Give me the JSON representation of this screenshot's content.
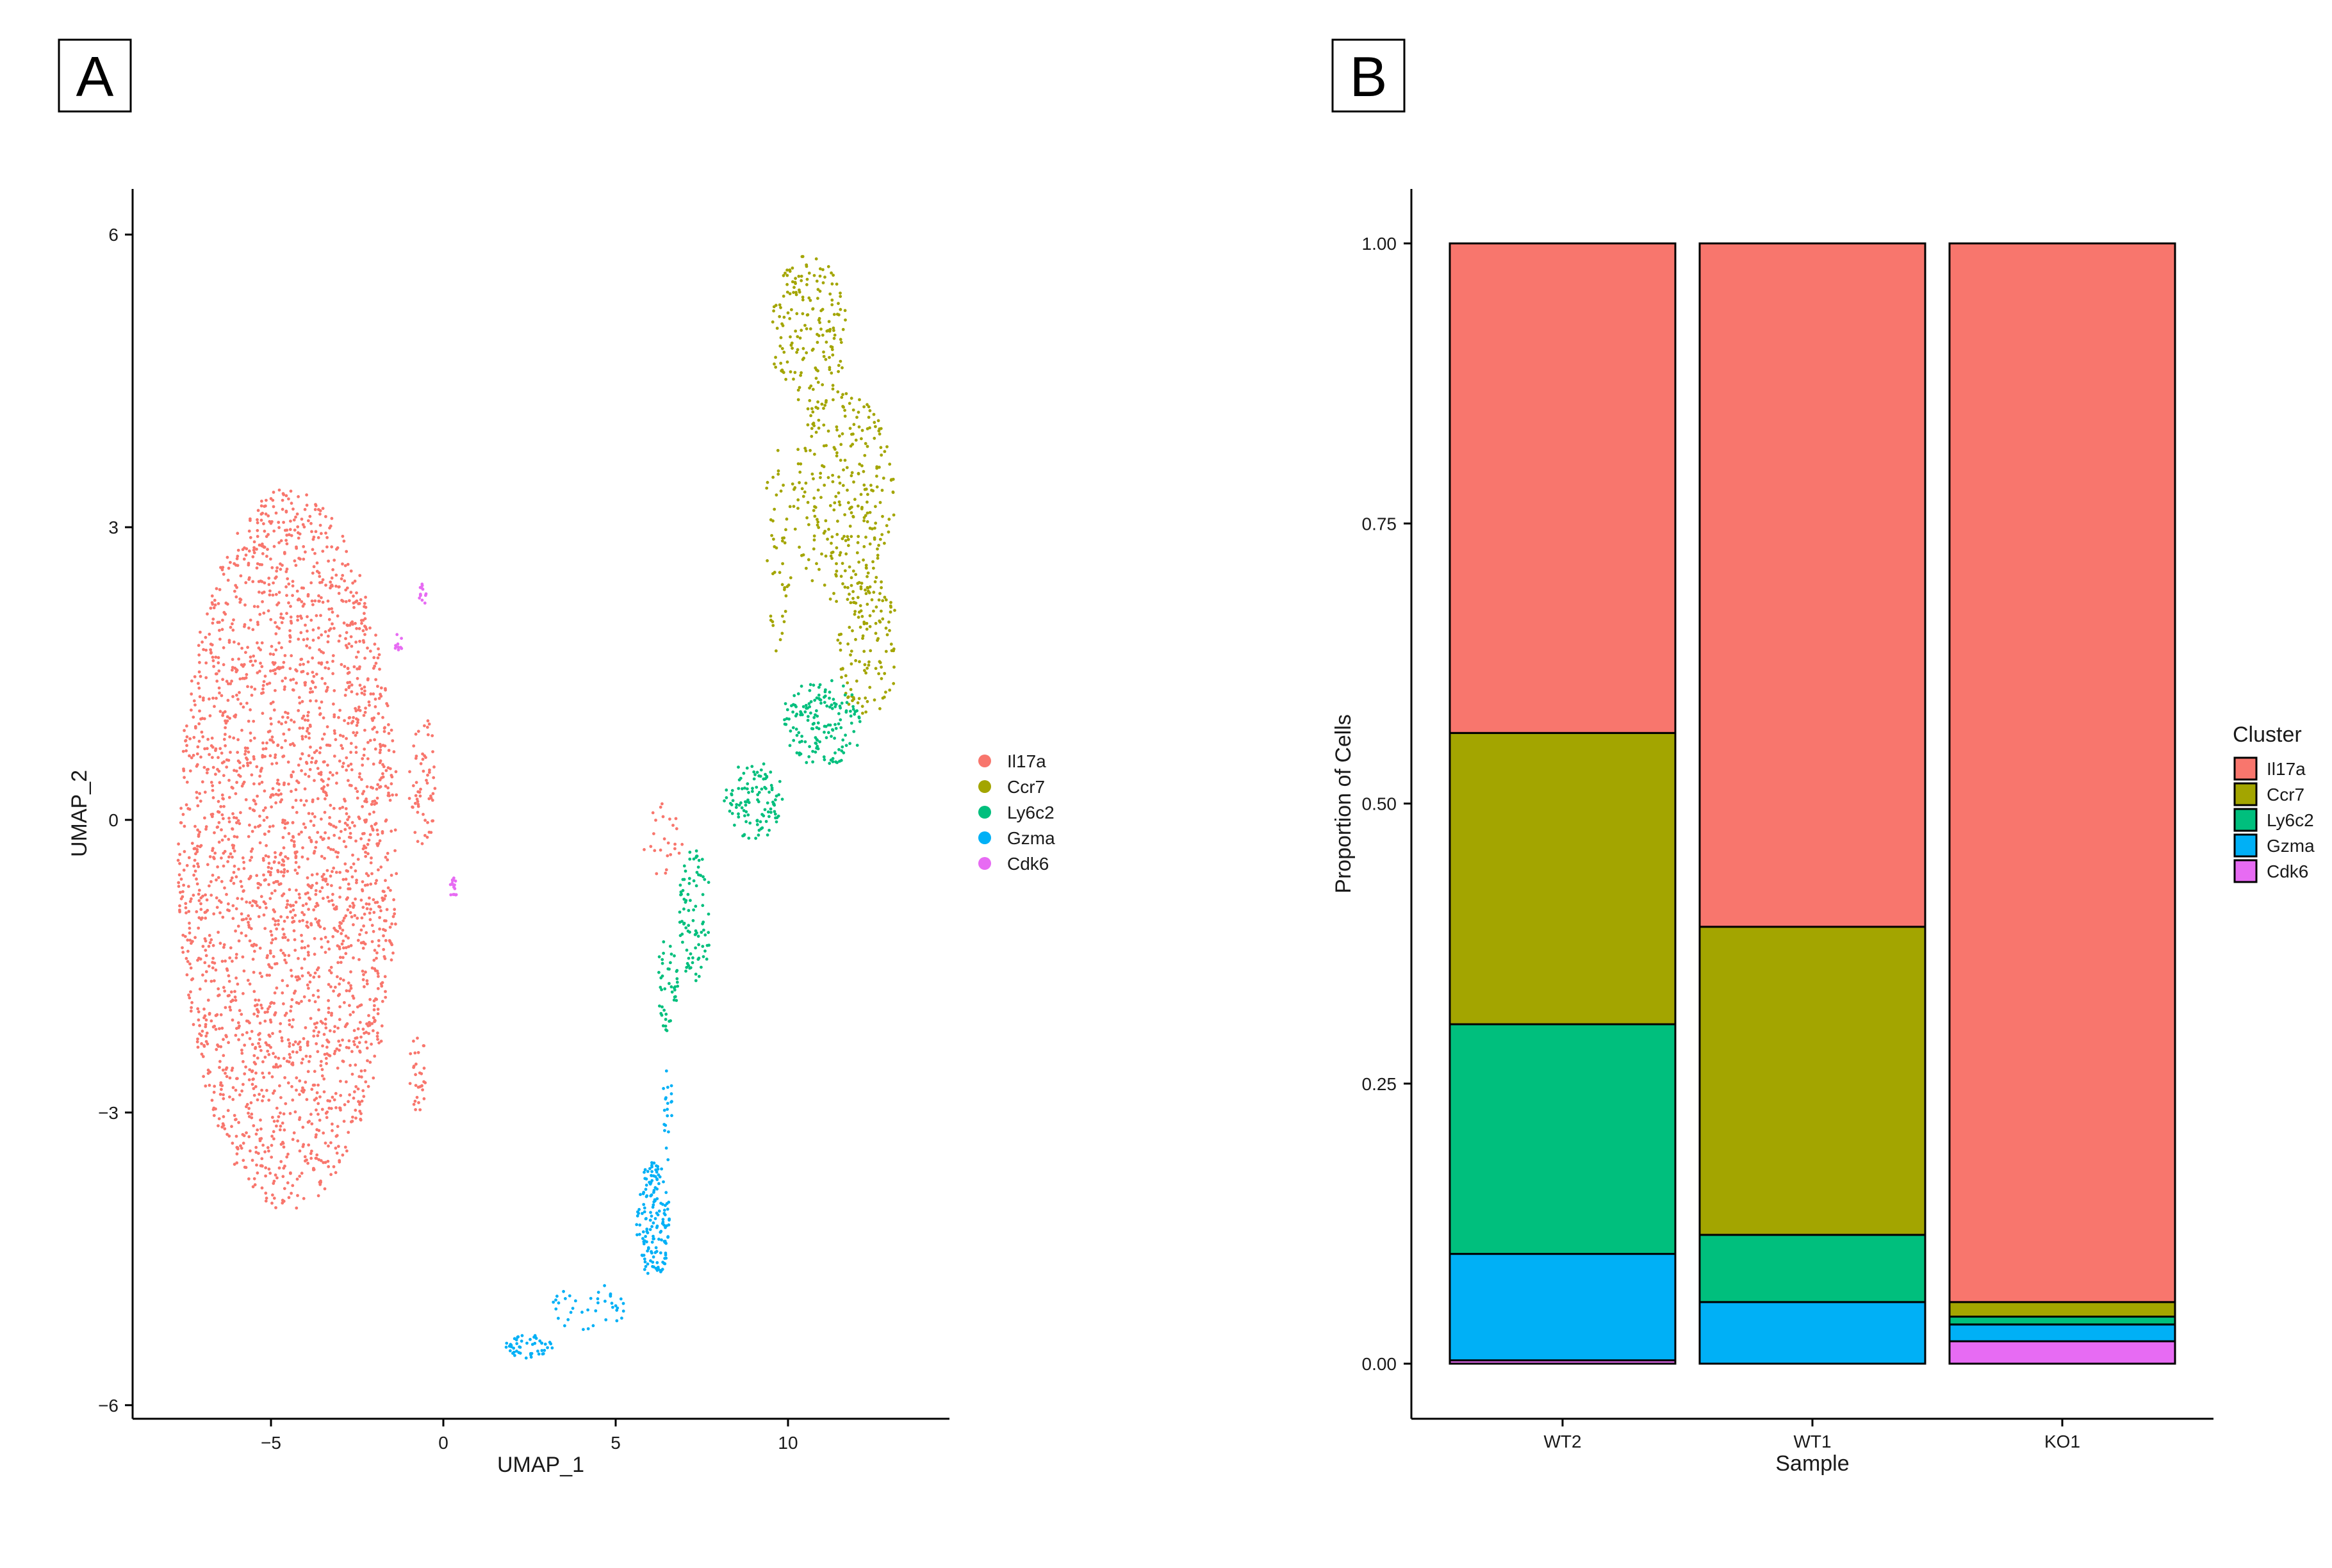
{
  "colors": {
    "Il17a": "#F8766D",
    "Ccr7": "#A3A500",
    "Ly6c2": "#00BF7D",
    "Gzma": "#00B0F6",
    "Cdk6": "#E76BF3"
  },
  "panels": {
    "a_label": "A",
    "b_label": "B"
  },
  "chart_data": [
    {
      "type": "scatter",
      "xlabel": "UMAP_1",
      "ylabel": "UMAP_2",
      "xticks": [
        -5,
        0,
        5,
        10
      ],
      "yticks": [
        -6,
        -3,
        0,
        3,
        6
      ],
      "xtick_labels": [
        "−5",
        "0",
        "5",
        "10"
      ],
      "ytick_labels": [
        "−6",
        "−3",
        "0",
        "3",
        "6"
      ],
      "xlim": [
        -9,
        15
      ],
      "ylim": [
        -6.2,
        6.5
      ],
      "legend_position": "right",
      "series": [
        {
          "name": "Il17a",
          "approx_regions": [
            {
              "shape": "ellipse",
              "cx": -4.5,
              "cy": -0.3,
              "rx": 3.2,
              "ry": 3.7,
              "approx_count": 2600
            },
            {
              "shape": "ellipse",
              "cx": -0.6,
              "cy": 0.4,
              "rx": 0.4,
              "ry": 0.7,
              "approx_count": 60
            },
            {
              "shape": "ellipse",
              "cx": -0.7,
              "cy": -2.6,
              "rx": 0.3,
              "ry": 0.4,
              "approx_count": 30
            },
            {
              "shape": "ellipse",
              "cx": 6.4,
              "cy": -0.2,
              "rx": 0.6,
              "ry": 0.4,
              "approx_count": 25
            }
          ]
        },
        {
          "name": "Ccr7",
          "approx_regions": [
            {
              "shape": "ellipse",
              "cx": 10.6,
              "cy": 5.0,
              "rx": 1.1,
              "ry": 0.8,
              "approx_count": 180
            },
            {
              "shape": "ellipse",
              "cx": 11.6,
              "cy": 3.3,
              "rx": 1.5,
              "ry": 1.1,
              "approx_count": 280
            },
            {
              "shape": "ellipse",
              "cx": 12.3,
              "cy": 1.8,
              "rx": 0.9,
              "ry": 0.8,
              "approx_count": 130
            },
            {
              "shape": "ellipse",
              "cx": 9.7,
              "cy": 2.8,
              "rx": 0.4,
              "ry": 1.2,
              "approx_count": 45
            }
          ]
        },
        {
          "name": "Ly6c2",
          "approx_regions": [
            {
              "shape": "ellipse",
              "cx": 11.0,
              "cy": 1.0,
              "rx": 1.2,
              "ry": 0.45,
              "approx_count": 160
            },
            {
              "shape": "ellipse",
              "cx": 9.0,
              "cy": 0.2,
              "rx": 0.9,
              "ry": 0.4,
              "approx_count": 110
            },
            {
              "shape": "ellipse",
              "cx": 7.3,
              "cy": -1.0,
              "rx": 0.5,
              "ry": 0.7,
              "approx_count": 90
            },
            {
              "shape": "ellipse",
              "cx": 6.5,
              "cy": -1.7,
              "rx": 0.3,
              "ry": 0.5,
              "approx_count": 45
            }
          ]
        },
        {
          "name": "Gzma",
          "approx_regions": [
            {
              "shape": "ellipse",
              "cx": 6.1,
              "cy": -4.1,
              "rx": 0.5,
              "ry": 0.6,
              "approx_count": 160
            },
            {
              "shape": "ellipse",
              "cx": 6.5,
              "cy": -3.0,
              "rx": 0.15,
              "ry": 0.5,
              "approx_count": 20
            },
            {
              "shape": "ellipse",
              "cx": 4.2,
              "cy": -5.0,
              "rx": 1.1,
              "ry": 0.25,
              "approx_count": 40
            },
            {
              "shape": "ellipse",
              "cx": 2.5,
              "cy": -5.4,
              "rx": 0.7,
              "ry": 0.12,
              "approx_count": 50
            }
          ]
        },
        {
          "name": "Cdk6",
          "approx_regions": [
            {
              "shape": "ellipse",
              "cx": -0.6,
              "cy": 2.3,
              "rx": 0.1,
              "ry": 0.12,
              "approx_count": 14
            },
            {
              "shape": "ellipse",
              "cx": -1.3,
              "cy": 1.8,
              "rx": 0.15,
              "ry": 0.12,
              "approx_count": 10
            },
            {
              "shape": "ellipse",
              "cx": 0.3,
              "cy": -0.7,
              "rx": 0.1,
              "ry": 0.12,
              "approx_count": 16
            }
          ]
        }
      ]
    },
    {
      "type": "bar",
      "stacked": true,
      "xlabel": "Sample",
      "ylabel": "Proportion of Cells",
      "categories": [
        "WT2",
        "WT1",
        "KO1"
      ],
      "ylim": [
        0,
        1
      ],
      "yticks": [
        0.0,
        0.25,
        0.5,
        0.75,
        1.0
      ],
      "ytick_labels": [
        "0.00",
        "0.25",
        "0.50",
        "0.75",
        "1.00"
      ],
      "legend_title": "Cluster",
      "legend_position": "right",
      "series": [
        {
          "name": "Cdk6",
          "values": [
            0.003,
            0.0,
            0.02
          ]
        },
        {
          "name": "Gzma",
          "values": [
            0.095,
            0.055,
            0.015
          ]
        },
        {
          "name": "Ly6c2",
          "values": [
            0.205,
            0.06,
            0.007
          ]
        },
        {
          "name": "Ccr7",
          "values": [
            0.26,
            0.275,
            0.013
          ]
        },
        {
          "name": "Il17a",
          "values": [
            0.437,
            0.61,
            0.945
          ]
        }
      ],
      "legend_order": [
        "Il17a",
        "Ccr7",
        "Ly6c2",
        "Gzma",
        "Cdk6"
      ]
    }
  ]
}
